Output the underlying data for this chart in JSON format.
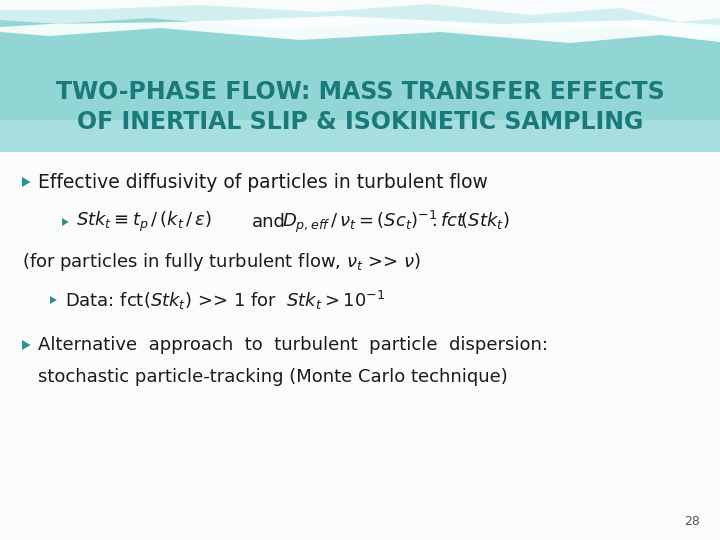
{
  "title_line1": "TWO-PHASE FLOW: MASS TRANSFER EFFECTS",
  "title_line2": "OF INERTIAL SLIP & ISOKINETIC SAMPLING",
  "title_color": "#1A7A7A",
  "bg_color": "#FAFCFC",
  "slide_number": "28",
  "bullet_color": "#2E9090",
  "text_color": "#1A1A1A",
  "bullet1": "Effective diffusivity of particles in turbulent flow",
  "formula_note": "(for particles in fully turbulent flow, ν",
  "alt_line1": "Alternative  approach  to  turbulent  particle  dispersion:",
  "alt_line2": "stochastic particle-tracking (Monte Carlo technique)",
  "header_teal": "#5BBEBE",
  "header_light": "#A8DCDC",
  "header_lighter": "#C8ECEC",
  "wave_white": "#E8F8F8"
}
